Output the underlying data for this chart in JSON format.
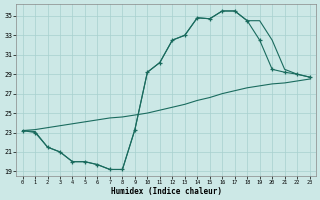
{
  "xlabel": "Humidex (Indice chaleur)",
  "bg_color": "#cce8e6",
  "grid_color": "#a8d0ce",
  "line_color": "#1a6b5e",
  "xlim": [
    -0.5,
    23.5
  ],
  "ylim": [
    18.5,
    36.2
  ],
  "xticks": [
    0,
    1,
    2,
    3,
    4,
    5,
    6,
    7,
    8,
    9,
    10,
    11,
    12,
    13,
    14,
    15,
    16,
    17,
    18,
    19,
    20,
    21,
    22,
    23
  ],
  "yticks": [
    19,
    21,
    23,
    25,
    27,
    29,
    31,
    33,
    35
  ],
  "line_upper_x": [
    0,
    1,
    2,
    3,
    4,
    5,
    6,
    7,
    8,
    9,
    10,
    11,
    12,
    13,
    14,
    15,
    16,
    17,
    18,
    19,
    20,
    21,
    22,
    23
  ],
  "line_upper_y": [
    23.2,
    23.0,
    21.5,
    21.0,
    20.0,
    20.0,
    19.7,
    19.2,
    19.2,
    23.3,
    29.2,
    30.2,
    32.5,
    33.0,
    34.8,
    34.7,
    35.5,
    35.5,
    34.5,
    32.5,
    29.5,
    29.2,
    29.0,
    28.7
  ],
  "line_diag_x": [
    0,
    1,
    2,
    3,
    4,
    5,
    6,
    7,
    8,
    9,
    10,
    11,
    12,
    13,
    14,
    15,
    16,
    17,
    18,
    19,
    20,
    21,
    22,
    23
  ],
  "line_diag_y": [
    23.2,
    23.3,
    23.5,
    23.7,
    23.9,
    24.1,
    24.3,
    24.5,
    24.6,
    24.8,
    25.0,
    25.3,
    25.6,
    25.9,
    26.3,
    26.6,
    27.0,
    27.3,
    27.6,
    27.8,
    28.0,
    28.1,
    28.3,
    28.5
  ],
  "line_lower_x": [
    0,
    1,
    2,
    3,
    4,
    5,
    6,
    7,
    8,
    9,
    10,
    11,
    12,
    13,
    14,
    15,
    16,
    17,
    18,
    19,
    20,
    21,
    22,
    23
  ],
  "line_lower_y": [
    23.2,
    23.1,
    21.5,
    21.0,
    20.0,
    20.0,
    19.7,
    19.2,
    19.2,
    23.3,
    29.2,
    30.2,
    32.5,
    33.0,
    34.8,
    34.7,
    35.5,
    35.5,
    34.5,
    34.5,
    32.5,
    29.5,
    29.0,
    28.7
  ]
}
